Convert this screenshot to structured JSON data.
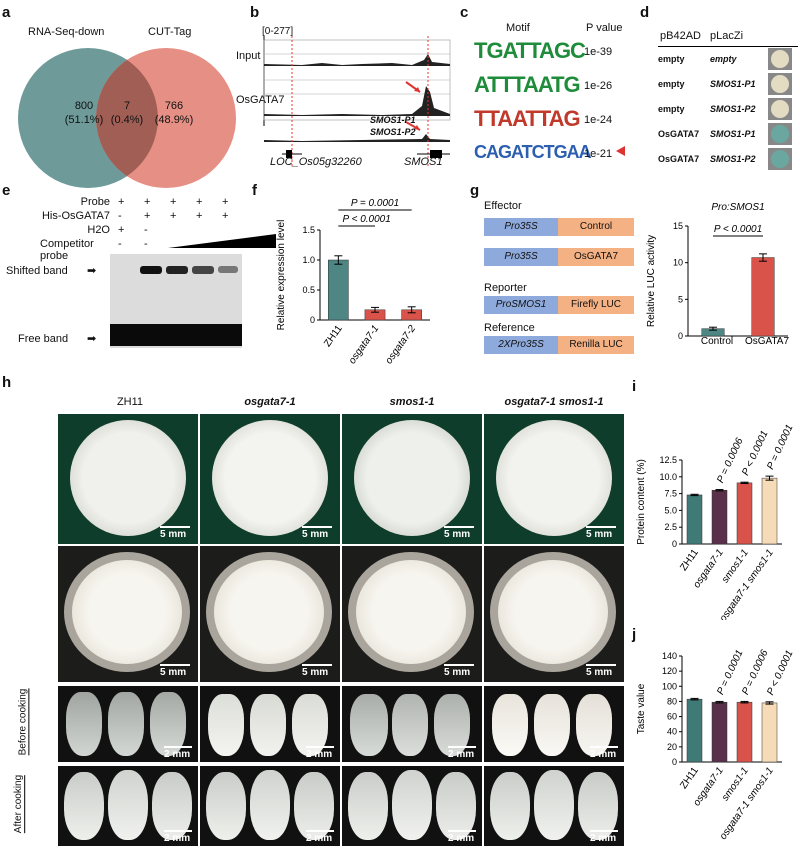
{
  "panels": {
    "a": "a",
    "b": "b",
    "c": "c",
    "d": "d",
    "e": "e",
    "f": "f",
    "g": "g",
    "h": "h",
    "i": "i",
    "j": "j"
  },
  "venn": {
    "left_label": "RNA-Seq-down",
    "right_label": "CUT-Tag",
    "left_count": "800",
    "left_pct": "(51.1%)",
    "mid_count": "7",
    "mid_pct": "(0.4%)",
    "right_count": "766",
    "right_pct": "(48.9%)",
    "left_color": "#5e8f8f",
    "right_color": "#e27b6e"
  },
  "tracks": {
    "range": "[0-277]",
    "input": "Input",
    "chip": "OsGATA7",
    "gene1": "LOC_Os05g32260",
    "gene2": "SMOS1",
    "p1": "SMOS1-P1",
    "p2": "SMOS1-P2"
  },
  "motifs": {
    "header_motif": "Motif",
    "header_p": "P value",
    "rows": [
      {
        "seq": "TGATTAGC",
        "p": "1e-39"
      },
      {
        "seq": "ATTTAATG",
        "p": "1e-26"
      },
      {
        "seq": "TTAATTAG",
        "p": "1e-24"
      },
      {
        "seq": "CAGATCTGAA",
        "p": "1e-21"
      }
    ]
  },
  "y1h": {
    "col1": "pB42AD",
    "col2": "pLacZi",
    "rows": [
      {
        "ad": "empty",
        "lacz": "empty",
        "color": "#e4dcc2"
      },
      {
        "ad": "empty",
        "lacz": "SMOS1-P1",
        "color": "#e4dcc2"
      },
      {
        "ad": "empty",
        "lacz": "SMOS1-P2",
        "color": "#e4dcc2"
      },
      {
        "ad": "OsGATA7",
        "lacz": "SMOS1-P1",
        "color": "#6aa7a0"
      },
      {
        "ad": "OsGATA7",
        "lacz": "SMOS1-P2",
        "color": "#6aa7a0"
      }
    ]
  },
  "emsa": {
    "rows": [
      {
        "label": "Probe",
        "vals": [
          "+",
          "+",
          "+",
          "+",
          "+"
        ]
      },
      {
        "label": "His-OsGATA7",
        "vals": [
          "-",
          "+",
          "+",
          "+",
          "+"
        ]
      },
      {
        "label": "H2O",
        "vals": [
          "+",
          "-",
          "",
          "",
          ""
        ]
      },
      {
        "label": "Competitor probe",
        "vals": [
          "-",
          "-",
          "",
          "",
          ""
        ]
      }
    ],
    "shifted": "Shifted band",
    "free": "Free band"
  },
  "panel_f": {
    "pval1": "P = 0.0001",
    "pval2": "P < 0.0001"
  },
  "panel_g": {
    "effector": "Effector",
    "reporter": "Reporter",
    "reference": "Reference",
    "promoter": "Pro35S",
    "control": "Control",
    "gata7": "OsGATA7",
    "prosmos1": "ProSMOS1",
    "firefly": "Firefly LUC",
    "pro2x": "2XPro35S",
    "renilla": "Renilla LUC",
    "chart_title": "Pro:SMOS1",
    "pval": "P < 0.0001"
  },
  "panel_h": {
    "cols": [
      "ZH11",
      "osgata7-1",
      "smos1-1",
      "osgata7-1 smos1-1"
    ],
    "row3": "Before cooking",
    "row4": "After cooking",
    "scale5": "5 mm",
    "scale2": "2 mm"
  },
  "panel_i_pvals": [
    "P = 0.0006",
    "P < 0.0001",
    "P = 0.0001"
  ],
  "panel_j_pvals": [
    "P = 0.0001",
    "P = 0.0006",
    "P < 0.0001"
  ],
  "chart_data": [
    {
      "id": "f",
      "type": "bar",
      "title": "",
      "ylabel": "Relative expression level",
      "categories": [
        "ZH11",
        "osgata7-1",
        "osgata7-2"
      ],
      "values": [
        1.0,
        0.17,
        0.17
      ],
      "errors": [
        0.07,
        0.04,
        0.05
      ],
      "ylim": [
        0,
        1.5
      ],
      "yticks": [
        "0",
        "0.5",
        "1.0",
        "1.5"
      ],
      "colors": [
        "#4e8683",
        "#d9534b",
        "#d9534b"
      ]
    },
    {
      "id": "g",
      "type": "bar",
      "title": "Pro:SMOS1",
      "ylabel": "Relative LUC activity",
      "categories": [
        "Control",
        "OsGATA7"
      ],
      "values": [
        1.0,
        10.7
      ],
      "errors": [
        0.2,
        0.5
      ],
      "ylim": [
        0,
        15
      ],
      "yticks": [
        "0",
        "5",
        "10",
        "15"
      ],
      "colors": [
        "#4e8683",
        "#d9534b"
      ]
    },
    {
      "id": "i",
      "type": "bar",
      "title": "",
      "ylabel": "Protein content (%)",
      "categories": [
        "ZH11",
        "osgata7-1",
        "smos1-1",
        "osgata7-1 smos1-1"
      ],
      "values": [
        7.3,
        8.0,
        9.1,
        9.8
      ],
      "errors": [
        0.1,
        0.1,
        0.1,
        0.3
      ],
      "ylim": [
        0,
        12.5
      ],
      "yticks": [
        "0",
        "2.5",
        "5.0",
        "7.5",
        "10.0",
        "12.5"
      ],
      "colors": [
        "#3f7a77",
        "#5a2f4a",
        "#d9534b",
        "#f6dbb8"
      ]
    },
    {
      "id": "j",
      "type": "bar",
      "title": "",
      "ylabel": "Taste value",
      "categories": [
        "ZH11",
        "osgata7-1",
        "smos1-1",
        "osgata7-1 smos1-1"
      ],
      "values": [
        83,
        79,
        79,
        78
      ],
      "errors": [
        1,
        1,
        1,
        1.5
      ],
      "ylim": [
        0,
        140
      ],
      "yticks": [
        "0",
        "20",
        "40",
        "60",
        "80",
        "100",
        "120",
        "140"
      ],
      "colors": [
        "#3f7a77",
        "#5a2f4a",
        "#d9534b",
        "#f6dbb8"
      ]
    }
  ]
}
